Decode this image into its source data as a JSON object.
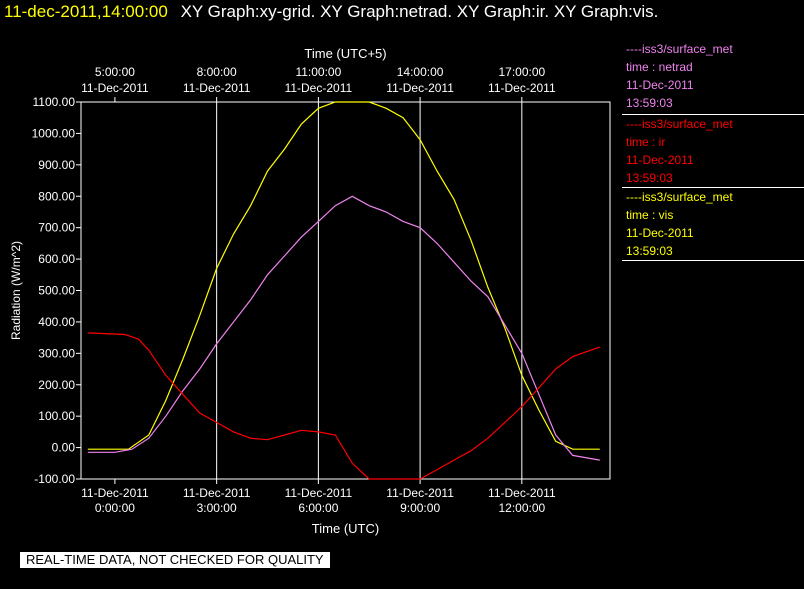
{
  "header": {
    "timestamp": "11-dec-2011,14:00:00",
    "titles": "XY Graph:xy-grid.  XY Graph:netrad.  XY Graph:ir.  XY Graph:vis."
  },
  "legend": [
    {
      "title": "----iss3/surface_met",
      "var": "time : netrad",
      "date": "11-Dec-2011",
      "time": "13:59:03",
      "color": "#ee82ee"
    },
    {
      "title": "----iss3/surface_met",
      "var": "time : ir",
      "date": "11-Dec-2011",
      "time": "13:59:03",
      "color": "#ff0000"
    },
    {
      "title": "----iss3/surface_met",
      "var": "time : vis",
      "date": "11-Dec-2011",
      "time": "13:59:03",
      "color": "#ffff00"
    }
  ],
  "banner": "REAL-TIME DATA, NOT CHECKED FOR QUALITY",
  "chart_data": {
    "type": "line",
    "xlabel": "Time (UTC)",
    "x2label": "Time (UTC+5)",
    "ylabel": "Radiation (W/m^2)",
    "xlim": [
      -1.0,
      14.6
    ],
    "ylim": [
      -100,
      1100
    ],
    "yticks": [
      "-100.00",
      "0.00",
      "100.00",
      "200.00",
      "300.00",
      "400.00",
      "500.00",
      "600.00",
      "700.00",
      "800.00",
      "900.00",
      "1000.00",
      "1100.00"
    ],
    "ytick_values": [
      -100,
      0,
      100,
      200,
      300,
      400,
      500,
      600,
      700,
      800,
      900,
      1000,
      1100
    ],
    "xticks": [
      {
        "x": 0,
        "date": "11-Dec-2011",
        "time": "0:00:00"
      },
      {
        "x": 3,
        "date": "11-Dec-2011",
        "time": "3:00:00"
      },
      {
        "x": 6,
        "date": "11-Dec-2011",
        "time": "6:00:00"
      },
      {
        "x": 9,
        "date": "11-Dec-2011",
        "time": "9:00:00"
      },
      {
        "x": 12,
        "date": "11-Dec-2011",
        "time": "12:00:00"
      }
    ],
    "x2ticks": [
      {
        "x": 0,
        "time": "5:00:00",
        "date": "11-Dec-2011"
      },
      {
        "x": 3,
        "time": "8:00:00",
        "date": "11-Dec-2011"
      },
      {
        "x": 6,
        "time": "11:00:00",
        "date": "11-Dec-2011"
      },
      {
        "x": 9,
        "time": "14:00:00",
        "date": "11-Dec-2011"
      },
      {
        "x": 12,
        "time": "17:00:00",
        "date": "11-Dec-2011"
      }
    ],
    "grid_x": [
      3,
      6,
      9,
      12
    ],
    "series": [
      {
        "color": "#ffff00",
        "x": [
          -0.8,
          0.4,
          1,
          1.5,
          2,
          2.5,
          3,
          3.5,
          4,
          4.5,
          5,
          5.5,
          6,
          6.5,
          7,
          7.5,
          8,
          8.5,
          9,
          9.5,
          10,
          10.5,
          11,
          11.5,
          12,
          12.5,
          13,
          13.5,
          14.3
        ],
        "y": [
          -5,
          -5,
          40,
          150,
          280,
          420,
          570,
          680,
          770,
          880,
          950,
          1030,
          1080,
          1120,
          1110,
          1100,
          1080,
          1050,
          980,
          880,
          790,
          660,
          510,
          380,
          230,
          120,
          20,
          -5,
          -5
        ]
      },
      {
        "color": "#ee82ee",
        "x": [
          -0.8,
          0,
          0.5,
          1,
          1.5,
          2,
          2.5,
          3,
          3.5,
          4,
          4.5,
          5,
          5.5,
          6,
          6.5,
          7,
          7.5,
          8,
          8.5,
          9,
          9.5,
          10,
          10.5,
          11,
          11.5,
          12,
          12.5,
          13,
          13.5,
          14.3
        ],
        "y": [
          -15,
          -15,
          -5,
          30,
          100,
          180,
          250,
          330,
          400,
          470,
          550,
          610,
          670,
          720,
          770,
          800,
          770,
          750,
          720,
          700,
          650,
          590,
          530,
          480,
          390,
          300,
          170,
          40,
          -25,
          -40
        ]
      },
      {
        "color": "#ff0000",
        "x": [
          -0.8,
          0.3,
          0.7,
          1,
          1.5,
          2,
          2.5,
          3,
          3.5,
          4,
          4.5,
          5,
          5.5,
          6,
          6.5,
          7,
          7.5,
          8,
          8.5,
          9,
          9.5,
          10,
          10.5,
          11,
          11.5,
          12,
          12.5,
          13,
          13.5,
          14.3
        ],
        "y": [
          365,
          360,
          345,
          310,
          230,
          170,
          110,
          80,
          50,
          30,
          25,
          40,
          55,
          50,
          40,
          -50,
          -110,
          -110,
          -120,
          -100,
          -70,
          -40,
          -10,
          30,
          80,
          130,
          190,
          250,
          290,
          320
        ]
      }
    ]
  }
}
